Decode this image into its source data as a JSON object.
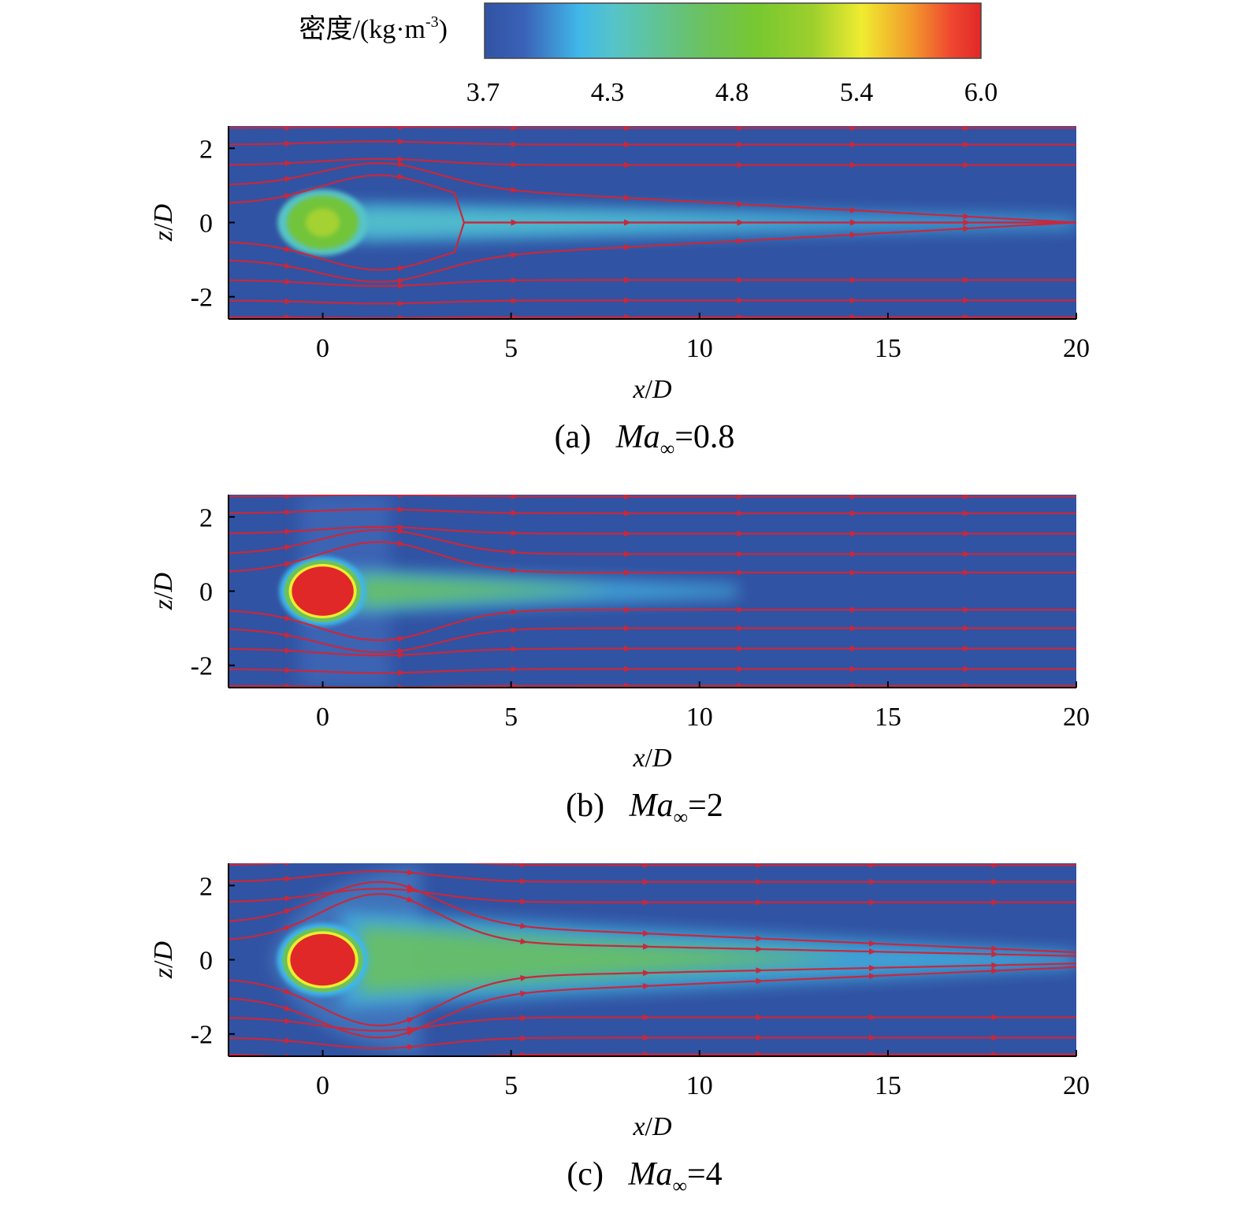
{
  "colorbar": {
    "label": "密度/(kg·m",
    "label_sup": "-3",
    "label_close": ")",
    "ticks": [
      "3.7",
      "4.3",
      "4.8",
      "5.4",
      "6.0"
    ],
    "colors": [
      "#3153a3",
      "#3a62b8",
      "#40b8e8",
      "#56c4c8",
      "#6cc25a",
      "#78c830",
      "#9ccf2e",
      "#f0ec30",
      "#f29a2c",
      "#ef4730",
      "#e02828"
    ]
  },
  "chart_data": [
    {
      "type": "heatmap",
      "title_prefix": "(a)",
      "title_var": "Ma",
      "title_sub": "∞",
      "title_value": "=0.8",
      "xlabel_var": "x",
      "xlabel_sep": "/",
      "xlabel_var2": "D",
      "ylabel_var": "z",
      "ylabel_sep": "/",
      "ylabel_var2": "D",
      "xlim": [
        -2.5,
        20
      ],
      "ylim": [
        -2.6,
        2.6
      ],
      "x_ticks": [
        0,
        5,
        10,
        15,
        20
      ],
      "y_ticks": [
        2,
        0,
        -2
      ],
      "x_tick_labels": [
        "0",
        "5",
        "10",
        "15",
        "20"
      ],
      "y_tick_labels": [
        "2",
        "0",
        "-2"
      ],
      "mach": 0.8,
      "droplet_peak_density": 4.9,
      "wake_density": 4.15,
      "wake_length": 20
    },
    {
      "type": "heatmap",
      "title_prefix": "(b)",
      "title_var": "Ma",
      "title_sub": "∞",
      "title_value": "=2",
      "xlabel_var": "x",
      "xlabel_sep": "/",
      "xlabel_var2": "D",
      "ylabel_var": "z",
      "ylabel_sep": "/",
      "ylabel_var2": "D",
      "xlim": [
        -2.5,
        20
      ],
      "ylim": [
        -2.6,
        2.6
      ],
      "x_ticks": [
        0,
        5,
        10,
        15,
        20
      ],
      "y_ticks": [
        2,
        0,
        -2
      ],
      "x_tick_labels": [
        "0",
        "5",
        "10",
        "15",
        "20"
      ],
      "y_tick_labels": [
        "2",
        "0",
        "-2"
      ],
      "mach": 2,
      "droplet_peak_density": 6.0,
      "wake_density": 4.3,
      "wake_length": 11
    },
    {
      "type": "heatmap",
      "title_prefix": "(c)",
      "title_var": "Ma",
      "title_sub": "∞",
      "title_value": "=4",
      "xlabel_var": "x",
      "xlabel_sep": "/",
      "xlabel_var2": "D",
      "ylabel_var": "z",
      "ylabel_sep": "/",
      "ylabel_var2": "D",
      "xlim": [
        -2.5,
        20
      ],
      "ylim": [
        -2.6,
        2.6
      ],
      "x_ticks": [
        0,
        5,
        10,
        15,
        20
      ],
      "y_ticks": [
        2,
        0,
        -2
      ],
      "x_tick_labels": [
        "0",
        "5",
        "10",
        "15",
        "20"
      ],
      "y_tick_labels": [
        "2",
        "0",
        "-2"
      ],
      "mach": 4,
      "droplet_peak_density": 6.0,
      "wake_density": 4.7,
      "wake_length": 20
    }
  ],
  "colors": {
    "background_field": "#3153a3",
    "streamline": "#c8283c",
    "axis": "#000000"
  }
}
